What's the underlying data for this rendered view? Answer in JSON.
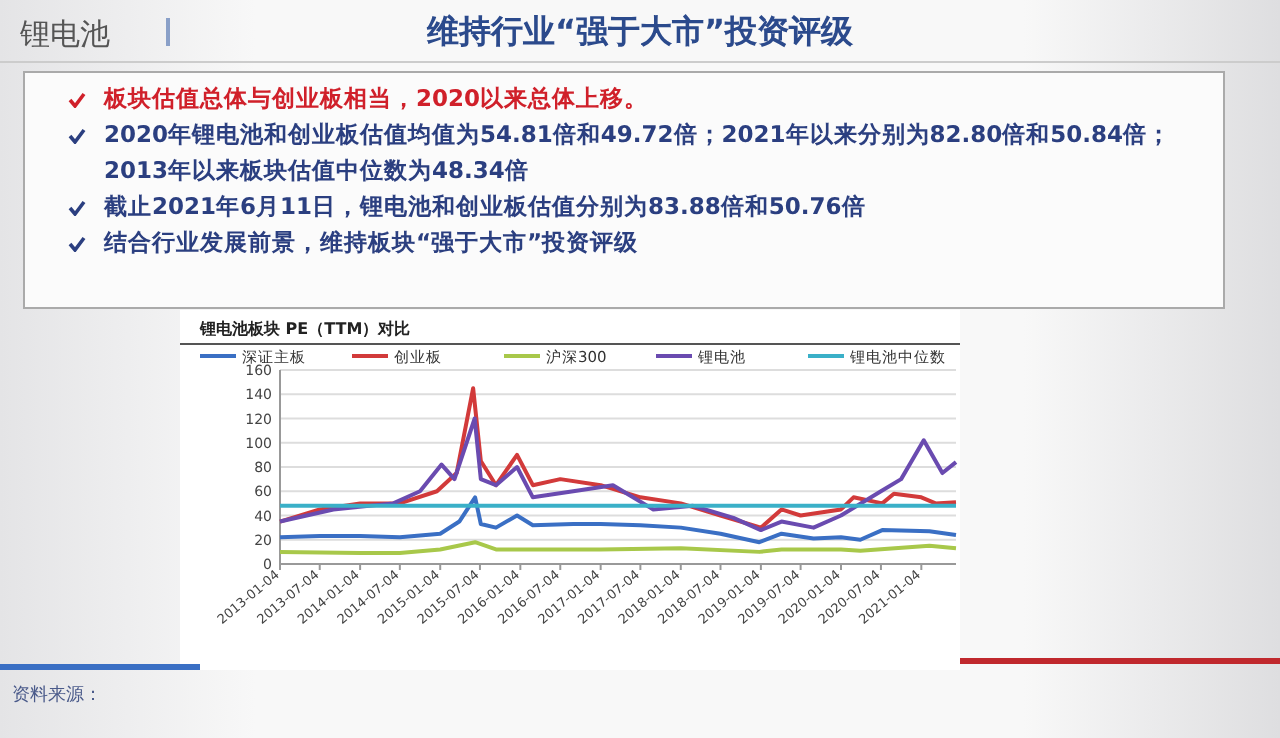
{
  "chart_data": {
    "type": "line",
    "title": "维持行业“强于大市”投资评级",
    "subtitle": "锂电池板块 PE（TTM）对比",
    "annotations": [
      "锂电池",
      "板块估值总体与创业板相当，2020以来总体上移。",
      "2020年锂电池和创业板估值均值为54.81倍和49.72倍；2021年以来分别为82.80倍和50.84倍；2013年以来板块估值中位数为48.34倍",
      "截止2021年6月11日，锂电池和创业板估值分别为83.88倍和50.76倍",
      "结合行业发展前景，维持板块“强于大市”投资评级",
      "资料来源："
    ],
    "series": [
      {
        "name": "深证主板",
        "color": "#3a6fc4",
        "x": [
          "2013-01-04",
          "2013-07-04",
          "2014-01-04",
          "2014-07-04",
          "2015-01-04",
          "2015-04-01",
          "2015-06-12",
          "2015-07-08",
          "2015-09-15",
          "2015-12-20",
          "2016-03-01",
          "2016-09-01",
          "2017-01-04",
          "2017-07-04",
          "2018-01-04",
          "2018-07-04",
          "2018-12-28",
          "2019-04-08",
          "2019-09-01",
          "2020-01-04",
          "2020-04-01",
          "2020-07-10",
          "2021-02-10",
          "2021-06-11"
        ],
        "values": [
          22,
          23,
          23,
          22,
          25,
          35,
          55,
          33,
          30,
          40,
          32,
          33,
          33,
          32,
          30,
          25,
          18,
          25,
          21,
          22,
          20,
          28,
          27,
          24
        ]
      },
      {
        "name": "创业板",
        "color": "#d23a3a",
        "x": [
          "2013-01-04",
          "2013-07-04",
          "2014-01-04",
          "2014-07-04",
          "2014-12-20",
          "2015-03-20",
          "2015-06-03",
          "2015-07-08",
          "2015-09-15",
          "2015-12-20",
          "2016-03-01",
          "2016-07-04",
          "2017-01-04",
          "2017-07-04",
          "2018-01-04",
          "2018-07-04",
          "2019-01-04",
          "2019-04-08",
          "2019-07-04",
          "2020-01-04",
          "2020-03-01",
          "2020-07-10",
          "2020-09-01",
          "2021-01-04",
          "2021-03-10",
          "2021-06-11"
        ],
        "values": [
          35,
          45,
          50,
          50,
          60,
          75,
          145,
          85,
          65,
          90,
          65,
          70,
          65,
          55,
          50,
          40,
          30,
          45,
          40,
          45,
          55,
          50,
          58,
          55,
          50,
          51
        ]
      },
      {
        "name": "沪深300",
        "color": "#a8c84a",
        "x": [
          "2013-01-04",
          "2014-01-04",
          "2014-07-04",
          "2015-01-04",
          "2015-06-12",
          "2015-09-15",
          "2016-01-04",
          "2017-01-04",
          "2018-01-04",
          "2018-12-28",
          "2019-04-08",
          "2020-01-04",
          "2020-04-01",
          "2021-02-10",
          "2021-06-11"
        ],
        "values": [
          10,
          9,
          9,
          12,
          18,
          12,
          12,
          12,
          13,
          10,
          12,
          12,
          11,
          15,
          13
        ]
      },
      {
        "name": "锂电池",
        "color": "#6a4bb0",
        "x": [
          "2013-01-04",
          "2013-09-04",
          "2014-06-04",
          "2014-10-04",
          "2015-01-10",
          "2015-03-10",
          "2015-06-10",
          "2015-07-08",
          "2015-09-15",
          "2015-12-20",
          "2016-03-01",
          "2016-09-01",
          "2017-03-01",
          "2017-09-01",
          "2018-03-01",
          "2018-09-01",
          "2019-01-04",
          "2019-04-08",
          "2019-09-01",
          "2020-01-04",
          "2020-07-04",
          "2020-10-04",
          "2021-01-15",
          "2021-04-10",
          "2021-06-11"
        ],
        "values": [
          35,
          45,
          50,
          60,
          82,
          70,
          120,
          70,
          65,
          80,
          55,
          60,
          65,
          45,
          48,
          38,
          28,
          35,
          30,
          40,
          60,
          70,
          102,
          75,
          84
        ]
      },
      {
        "name": "锂电池中位数",
        "color": "#3ab0c8",
        "x": [
          "2013-01-04",
          "2021-06-11"
        ],
        "values": [
          48,
          48
        ]
      }
    ],
    "xlim": [
      "2013-01-04",
      "2021-06-11"
    ],
    "xticks": [
      "2013-01-04",
      "2013-07-04",
      "2014-01-04",
      "2014-07-04",
      "2015-01-04",
      "2015-07-04",
      "2016-01-04",
      "2016-07-04",
      "2017-01-04",
      "2017-07-04",
      "2018-01-04",
      "2018-07-04",
      "2019-01-04",
      "2019-07-04",
      "2020-01-04",
      "2020-07-04",
      "2021-01-04"
    ],
    "ylim": [
      0,
      160
    ],
    "yticks": [
      0,
      20,
      40,
      60,
      80,
      100,
      120,
      140,
      160
    ],
    "grid": "y",
    "legend": "top",
    "marker": "none",
    "line_style": "solid"
  }
}
